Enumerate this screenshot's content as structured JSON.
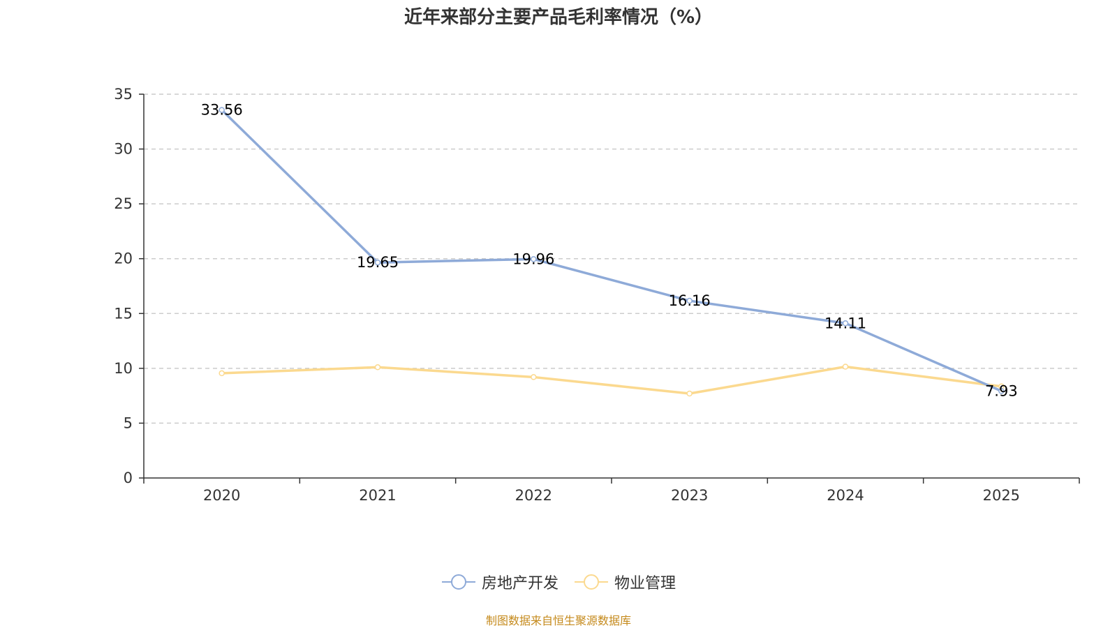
{
  "title": "近年来部分主要产品毛利率情况（%）",
  "source_note": "制图数据来自恒生聚源数据库",
  "chart_data": {
    "type": "line",
    "title": "近年来部分主要产品毛利率情况（%）",
    "xlabel": "",
    "ylabel": "",
    "categories": [
      "2020",
      "2021",
      "2022",
      "2023",
      "2024",
      "2025"
    ],
    "ylim": [
      0,
      35
    ],
    "yticks": [
      0,
      5,
      10,
      15,
      20,
      25,
      30,
      35
    ],
    "grid": true,
    "legend_position": "bottom-center",
    "series": [
      {
        "name": "房地产开发",
        "color": "#8eaad8",
        "values": [
          33.56,
          19.65,
          19.96,
          16.16,
          14.11,
          7.93
        ],
        "labels": [
          "33.56",
          "19.65",
          "19.96",
          "16.16",
          "14.11",
          "7.93"
        ],
        "show_labels": true
      },
      {
        "name": "物业管理",
        "color": "#fbd98f",
        "values": [
          9.55,
          10.1,
          9.2,
          7.7,
          10.15,
          8.35
        ],
        "show_labels": false
      }
    ]
  },
  "legend": {
    "items": [
      {
        "label": "房地产开发",
        "color": "#8eaad8",
        "icon": "circle-line-icon"
      },
      {
        "label": "物业管理",
        "color": "#fbd98f",
        "icon": "circle-line-icon"
      }
    ]
  }
}
